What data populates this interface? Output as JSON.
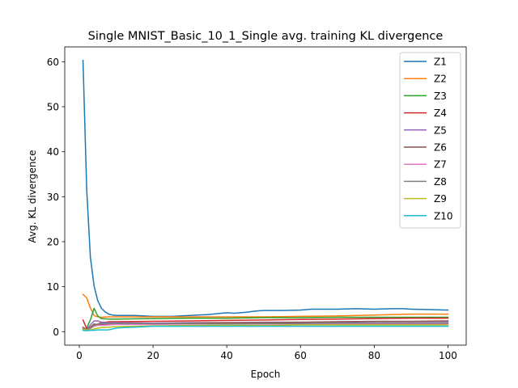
{
  "chart_data": {
    "type": "line",
    "title": "Single MNIST_Basic_10_1_Single avg. training KL divergence",
    "xlabel": "Epoch",
    "ylabel": "Avg. KL divergence",
    "xlim": [
      -3.95,
      104.95
    ],
    "ylim": [
      -3.0,
      63.3
    ],
    "xticks": [
      0,
      20,
      40,
      60,
      80,
      100
    ],
    "yticks": [
      0,
      10,
      20,
      30,
      40,
      50,
      60
    ],
    "grid": false,
    "legend_position": "top-right",
    "series": [
      {
        "name": "Z1",
        "color": "#1f77b4",
        "points": [
          [
            1,
            60.3
          ],
          [
            2,
            31.7
          ],
          [
            3,
            16.6
          ],
          [
            4,
            10.2
          ],
          [
            5,
            6.9
          ],
          [
            6,
            5.2
          ],
          [
            7,
            4.4
          ],
          [
            8,
            3.9
          ],
          [
            9,
            3.7
          ],
          [
            10,
            3.6
          ],
          [
            15,
            3.6
          ],
          [
            20,
            3.4
          ],
          [
            25,
            3.4
          ],
          [
            30,
            3.6
          ],
          [
            35,
            3.8
          ],
          [
            40,
            4.2
          ],
          [
            42,
            4.1
          ],
          [
            45,
            4.3
          ],
          [
            48,
            4.6
          ],
          [
            50,
            4.7
          ],
          [
            55,
            4.7
          ],
          [
            60,
            4.8
          ],
          [
            63,
            5.0
          ],
          [
            65,
            5.0
          ],
          [
            70,
            5.0
          ],
          [
            75,
            5.1
          ],
          [
            80,
            5.0
          ],
          [
            85,
            5.1
          ],
          [
            88,
            5.1
          ],
          [
            90,
            5.0
          ],
          [
            95,
            4.9
          ],
          [
            100,
            4.8
          ]
        ]
      },
      {
        "name": "Z2",
        "color": "#ff7f0e",
        "points": [
          [
            1,
            8.3
          ],
          [
            2,
            7.5
          ],
          [
            3,
            5.3
          ],
          [
            4,
            3.6
          ],
          [
            5,
            3.3
          ],
          [
            6,
            3.2
          ],
          [
            8,
            3.3
          ],
          [
            10,
            3.3
          ],
          [
            15,
            3.3
          ],
          [
            20,
            3.3
          ],
          [
            25,
            3.3
          ],
          [
            30,
            3.3
          ],
          [
            40,
            3.3
          ],
          [
            50,
            3.3
          ],
          [
            60,
            3.4
          ],
          [
            70,
            3.5
          ],
          [
            80,
            3.7
          ],
          [
            85,
            3.8
          ],
          [
            90,
            3.9
          ],
          [
            95,
            3.9
          ],
          [
            100,
            3.9
          ]
        ]
      },
      {
        "name": "Z3",
        "color": "#2ca02c",
        "points": [
          [
            1,
            0.4
          ],
          [
            2,
            0.8
          ],
          [
            3,
            2.6
          ],
          [
            4,
            5.2
          ],
          [
            5,
            3.5
          ],
          [
            6,
            2.9
          ],
          [
            8,
            2.8
          ],
          [
            10,
            2.8
          ],
          [
            20,
            2.9
          ],
          [
            30,
            3.0
          ],
          [
            40,
            3.0
          ],
          [
            50,
            3.1
          ],
          [
            60,
            3.1
          ],
          [
            70,
            3.2
          ],
          [
            80,
            3.2
          ],
          [
            90,
            3.2
          ],
          [
            100,
            3.2
          ]
        ]
      },
      {
        "name": "Z4",
        "color": "#d62728",
        "points": [
          [
            1,
            2.6
          ],
          [
            2,
            0.7
          ],
          [
            3,
            0.8
          ],
          [
            4,
            1.2
          ],
          [
            5,
            1.7
          ],
          [
            6,
            2.0
          ],
          [
            8,
            2.2
          ],
          [
            10,
            2.2
          ],
          [
            20,
            2.3
          ],
          [
            30,
            2.4
          ],
          [
            40,
            2.5
          ],
          [
            50,
            2.6
          ],
          [
            60,
            2.7
          ],
          [
            70,
            2.8
          ],
          [
            80,
            2.9
          ],
          [
            90,
            3.0
          ],
          [
            100,
            3.0
          ]
        ]
      },
      {
        "name": "Z5",
        "color": "#9467bd",
        "points": [
          [
            1,
            0.9
          ],
          [
            2,
            0.5
          ],
          [
            3,
            1.5
          ],
          [
            4,
            2.4
          ],
          [
            5,
            2.4
          ],
          [
            6,
            2.1
          ],
          [
            8,
            2.0
          ],
          [
            10,
            2.0
          ],
          [
            20,
            1.9
          ],
          [
            30,
            2.0
          ],
          [
            40,
            2.0
          ],
          [
            50,
            2.1
          ],
          [
            60,
            2.1
          ],
          [
            70,
            2.1
          ],
          [
            80,
            2.2
          ],
          [
            90,
            2.2
          ],
          [
            100,
            2.2
          ]
        ]
      },
      {
        "name": "Z6",
        "color": "#8c564b",
        "points": [
          [
            1,
            1.0
          ],
          [
            2,
            0.4
          ],
          [
            3,
            1.0
          ],
          [
            4,
            1.7
          ],
          [
            5,
            1.6
          ],
          [
            6,
            1.6
          ],
          [
            8,
            1.7
          ],
          [
            10,
            1.8
          ],
          [
            20,
            1.8
          ],
          [
            30,
            1.9
          ],
          [
            40,
            2.0
          ],
          [
            50,
            2.0
          ],
          [
            60,
            2.1
          ],
          [
            70,
            2.2
          ],
          [
            80,
            2.3
          ],
          [
            90,
            2.3
          ],
          [
            100,
            2.4
          ]
        ]
      },
      {
        "name": "Z7",
        "color": "#e377c2",
        "points": [
          [
            1,
            0.8
          ],
          [
            2,
            0.3
          ],
          [
            3,
            0.7
          ],
          [
            4,
            1.2
          ],
          [
            5,
            1.4
          ],
          [
            6,
            1.4
          ],
          [
            8,
            1.5
          ],
          [
            10,
            1.6
          ],
          [
            20,
            1.6
          ],
          [
            30,
            1.7
          ],
          [
            40,
            1.7
          ],
          [
            50,
            1.7
          ],
          [
            60,
            1.7
          ],
          [
            70,
            1.7
          ],
          [
            80,
            1.7
          ],
          [
            90,
            1.7
          ],
          [
            100,
            1.7
          ]
        ]
      },
      {
        "name": "Z8",
        "color": "#7f7f7f",
        "points": [
          [
            1,
            0.7
          ],
          [
            2,
            0.4
          ],
          [
            3,
            0.8
          ],
          [
            4,
            1.4
          ],
          [
            5,
            1.7
          ],
          [
            6,
            1.8
          ],
          [
            8,
            1.8
          ],
          [
            10,
            1.8
          ],
          [
            20,
            1.8
          ],
          [
            30,
            1.8
          ],
          [
            40,
            1.7
          ],
          [
            50,
            1.8
          ],
          [
            60,
            1.8
          ],
          [
            70,
            1.9
          ],
          [
            80,
            1.9
          ],
          [
            90,
            1.9
          ],
          [
            100,
            1.9
          ]
        ]
      },
      {
        "name": "Z9",
        "color": "#bcbd22",
        "points": [
          [
            1,
            0.5
          ],
          [
            2,
            0.4
          ],
          [
            3,
            0.4
          ],
          [
            4,
            0.6
          ],
          [
            5,
            0.8
          ],
          [
            6,
            0.9
          ],
          [
            8,
            1.0
          ],
          [
            10,
            1.1
          ],
          [
            15,
            1.2
          ],
          [
            20,
            1.3
          ],
          [
            30,
            1.4
          ],
          [
            40,
            1.4
          ],
          [
            50,
            1.4
          ],
          [
            60,
            1.5
          ],
          [
            70,
            1.5
          ],
          [
            80,
            1.5
          ],
          [
            90,
            1.5
          ],
          [
            100,
            1.5
          ]
        ]
      },
      {
        "name": "Z10",
        "color": "#17becf",
        "points": [
          [
            1,
            0.3
          ],
          [
            2,
            0.2
          ],
          [
            3,
            0.3
          ],
          [
            4,
            0.3
          ],
          [
            5,
            0.4
          ],
          [
            6,
            0.4
          ],
          [
            8,
            0.4
          ],
          [
            9,
            0.6
          ],
          [
            10,
            0.8
          ],
          [
            12,
            0.9
          ],
          [
            15,
            1.0
          ],
          [
            20,
            1.2
          ],
          [
            30,
            1.2
          ],
          [
            40,
            1.2
          ],
          [
            50,
            1.2
          ],
          [
            60,
            1.2
          ],
          [
            70,
            1.2
          ],
          [
            80,
            1.2
          ],
          [
            90,
            1.2
          ],
          [
            100,
            1.2
          ]
        ]
      }
    ]
  }
}
